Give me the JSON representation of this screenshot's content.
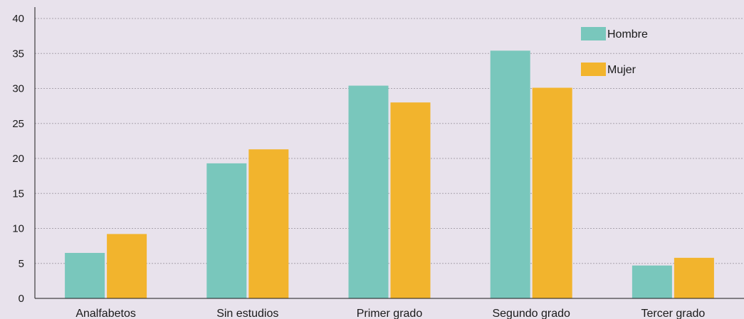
{
  "chart_data": {
    "type": "bar",
    "title": "",
    "xlabel": "",
    "ylabel": "",
    "categories": [
      "Analfabetos",
      "Sin estudios",
      "Primer grado",
      "Segundo grado",
      "Tercer grado"
    ],
    "series": [
      {
        "name": "Hombre",
        "color": "#79c7bc",
        "values": [
          6.5,
          19.3,
          30.4,
          35.4,
          4.7
        ]
      },
      {
        "name": "Mujer",
        "color": "#f2b42d",
        "values": [
          9.2,
          21.3,
          28.0,
          30.1,
          5.8
        ]
      }
    ],
    "ylim": [
      0,
      40
    ],
    "yticks": [
      0,
      5,
      10,
      15,
      20,
      25,
      30,
      35,
      40
    ],
    "grid": true,
    "legend_position": "top-right"
  }
}
